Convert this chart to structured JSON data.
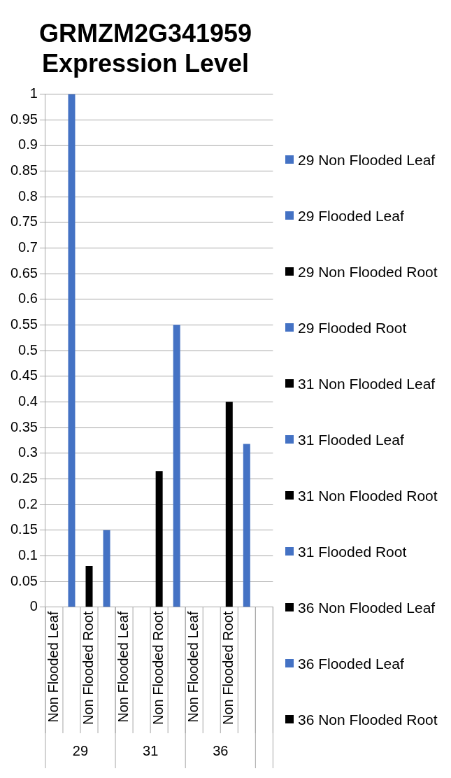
{
  "chart_data": {
    "type": "bar",
    "title": "GRMZM2G341959 Expression Level",
    "categories": [
      "Non Flooded Leaf",
      null,
      "Non Flooded Root",
      null,
      "Non Flooded Leaf",
      null,
      "Non Flooded Root",
      null,
      "Non Flooded Leaf",
      null,
      "Non Flooded Root",
      null,
      null
    ],
    "series": [
      {
        "name": "29 Non Flooded Leaf",
        "color": "#4472c4",
        "values": [
          0,
          null,
          null,
          null,
          null,
          null,
          null,
          null,
          null,
          null,
          null,
          null,
          null
        ]
      },
      {
        "name": "29 Flooded Leaf",
        "color": "#4472c4",
        "values": [
          null,
          1,
          null,
          null,
          null,
          null,
          null,
          null,
          null,
          null,
          null,
          null,
          null
        ]
      },
      {
        "name": "29 Non Flooded Root",
        "color": "#000000",
        "values": [
          null,
          null,
          0.08,
          null,
          null,
          null,
          null,
          null,
          null,
          null,
          null,
          null,
          null
        ]
      },
      {
        "name": "29 Flooded Root",
        "color": "#4472c4",
        "values": [
          null,
          null,
          null,
          0.15,
          null,
          null,
          null,
          null,
          null,
          null,
          null,
          null,
          null
        ]
      },
      {
        "name": "31 Non Flooded Leaf",
        "color": "#000000",
        "values": [
          null,
          null,
          null,
          null,
          0,
          null,
          null,
          null,
          null,
          null,
          null,
          null,
          null
        ]
      },
      {
        "name": "31 Flooded Leaf",
        "color": "#4472c4",
        "values": [
          null,
          null,
          null,
          null,
          null,
          0,
          null,
          null,
          null,
          null,
          null,
          null,
          null
        ]
      },
      {
        "name": "31 Non Flooded Root",
        "color": "#000000",
        "values": [
          null,
          null,
          null,
          null,
          null,
          null,
          0.265,
          null,
          null,
          null,
          null,
          null,
          null
        ]
      },
      {
        "name": "31 Flooded Root",
        "color": "#4472c4",
        "values": [
          null,
          null,
          null,
          null,
          null,
          null,
          null,
          0.55,
          null,
          null,
          null,
          null,
          null
        ]
      },
      {
        "name": "36 Non Flooded Leaf",
        "color": "#000000",
        "values": [
          null,
          null,
          null,
          null,
          null,
          null,
          null,
          null,
          0,
          null,
          null,
          null,
          null
        ]
      },
      {
        "name": "36 Flooded Leaf",
        "color": "#4472c4",
        "values": [
          null,
          null,
          null,
          null,
          null,
          null,
          null,
          null,
          null,
          0,
          null,
          null,
          null
        ]
      },
      {
        "name": "36 Non Flooded Root",
        "color": "#000000",
        "values": [
          null,
          null,
          null,
          null,
          null,
          null,
          null,
          null,
          null,
          null,
          0.4,
          null,
          null
        ]
      },
      {
        "color": "#4472c4",
        "values": [
          null,
          null,
          null,
          null,
          null,
          null,
          null,
          null,
          null,
          null,
          null,
          0.318,
          null
        ]
      }
    ],
    "ylim": [
      0,
      1
    ],
    "yticks": [
      0,
      0.05,
      0.1,
      0.15,
      0.2,
      0.25,
      0.3,
      0.35,
      0.4,
      0.45,
      0.5,
      0.55,
      0.6,
      0.65,
      0.7,
      0.75,
      0.8,
      0.85,
      0.9,
      0.95,
      1
    ],
    "grid": "y",
    "legend": "right",
    "annotations": [
      "29",
      "31",
      "36"
    ]
  }
}
